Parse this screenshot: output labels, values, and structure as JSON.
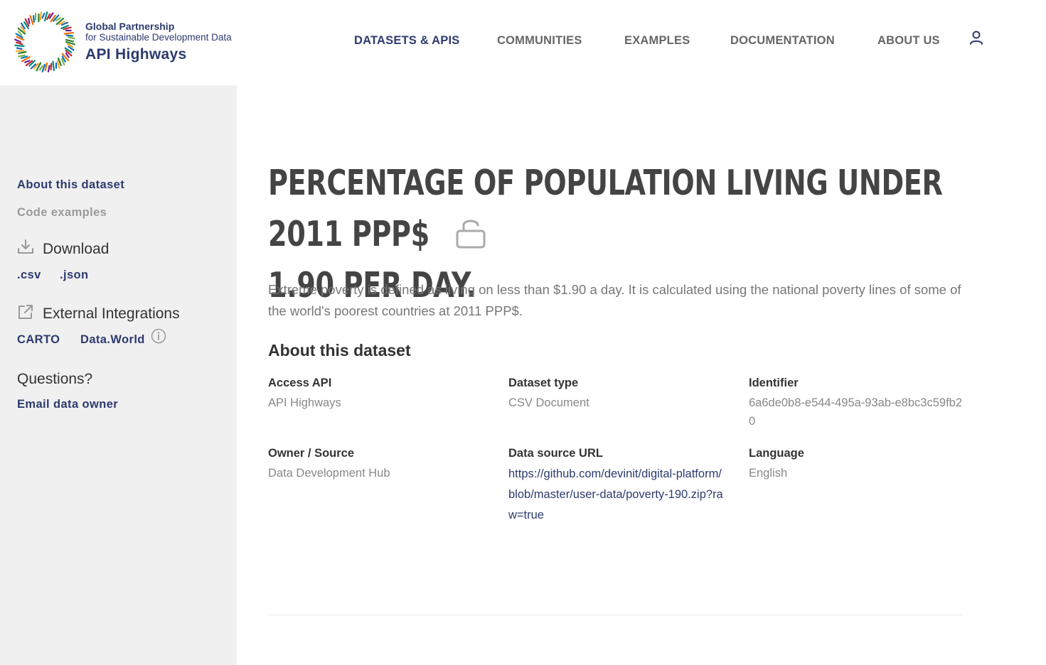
{
  "header": {
    "logo": {
      "line1": "Global Partnership",
      "line2": "for Sustainable Development Data",
      "line3": "API Highways"
    },
    "nav": [
      {
        "label": "DATASETS & APIS",
        "active": true
      },
      {
        "label": "COMMUNITIES",
        "active": false
      },
      {
        "label": "EXAMPLES",
        "active": false
      },
      {
        "label": "DOCUMENTATION",
        "active": false
      },
      {
        "label": "ABOUT US",
        "active": false
      }
    ],
    "user_icon": "user-icon"
  },
  "sidebar": {
    "about": "About this dataset",
    "code": "Code examples",
    "download": {
      "heading": "Download",
      "icon": "download-icon",
      "csv": ".csv",
      "json": ".json"
    },
    "integrations": {
      "heading": "External Integrations",
      "icon": "external-link-icon",
      "carto": "CARTO",
      "dataworld": "Data.World",
      "info_icon": "info-icon"
    },
    "questions": {
      "heading": "Questions?",
      "email": "Email data owner"
    }
  },
  "main": {
    "title_line1": "Percentage of population living under 2011 PPP$",
    "title_line2": "1.90 per day.",
    "lock_icon": "unlocked-icon",
    "description": "Extreme poverty is defined as living on less than $1.90 a day. It is calculated using the national poverty lines of some of the world's poorest countries at 2011 PPP$.",
    "section_title": "About this dataset",
    "fields": {
      "access_api": {
        "label": "Access API",
        "value": "API Highways"
      },
      "dataset_type": {
        "label": "Dataset type",
        "value": "CSV Document"
      },
      "identifier": {
        "label": "Identifier",
        "value": "6a6de0b8-e544-495a-93ab-e8bc3c59fb20"
      },
      "owner": {
        "label": "Owner / Source",
        "value": "Data Development Hub"
      },
      "source_url": {
        "label": "Data source URL",
        "value": "https://github.com/devinit/digital-platform/blob/master/user-data/poverty-190.zip?raw=true"
      },
      "language": {
        "label": "Language",
        "value": "English"
      }
    }
  },
  "colors": {
    "brand": "#2d3a6e",
    "sidebar_bg": "#f0f0f0",
    "muted": "#9a9a9a"
  }
}
